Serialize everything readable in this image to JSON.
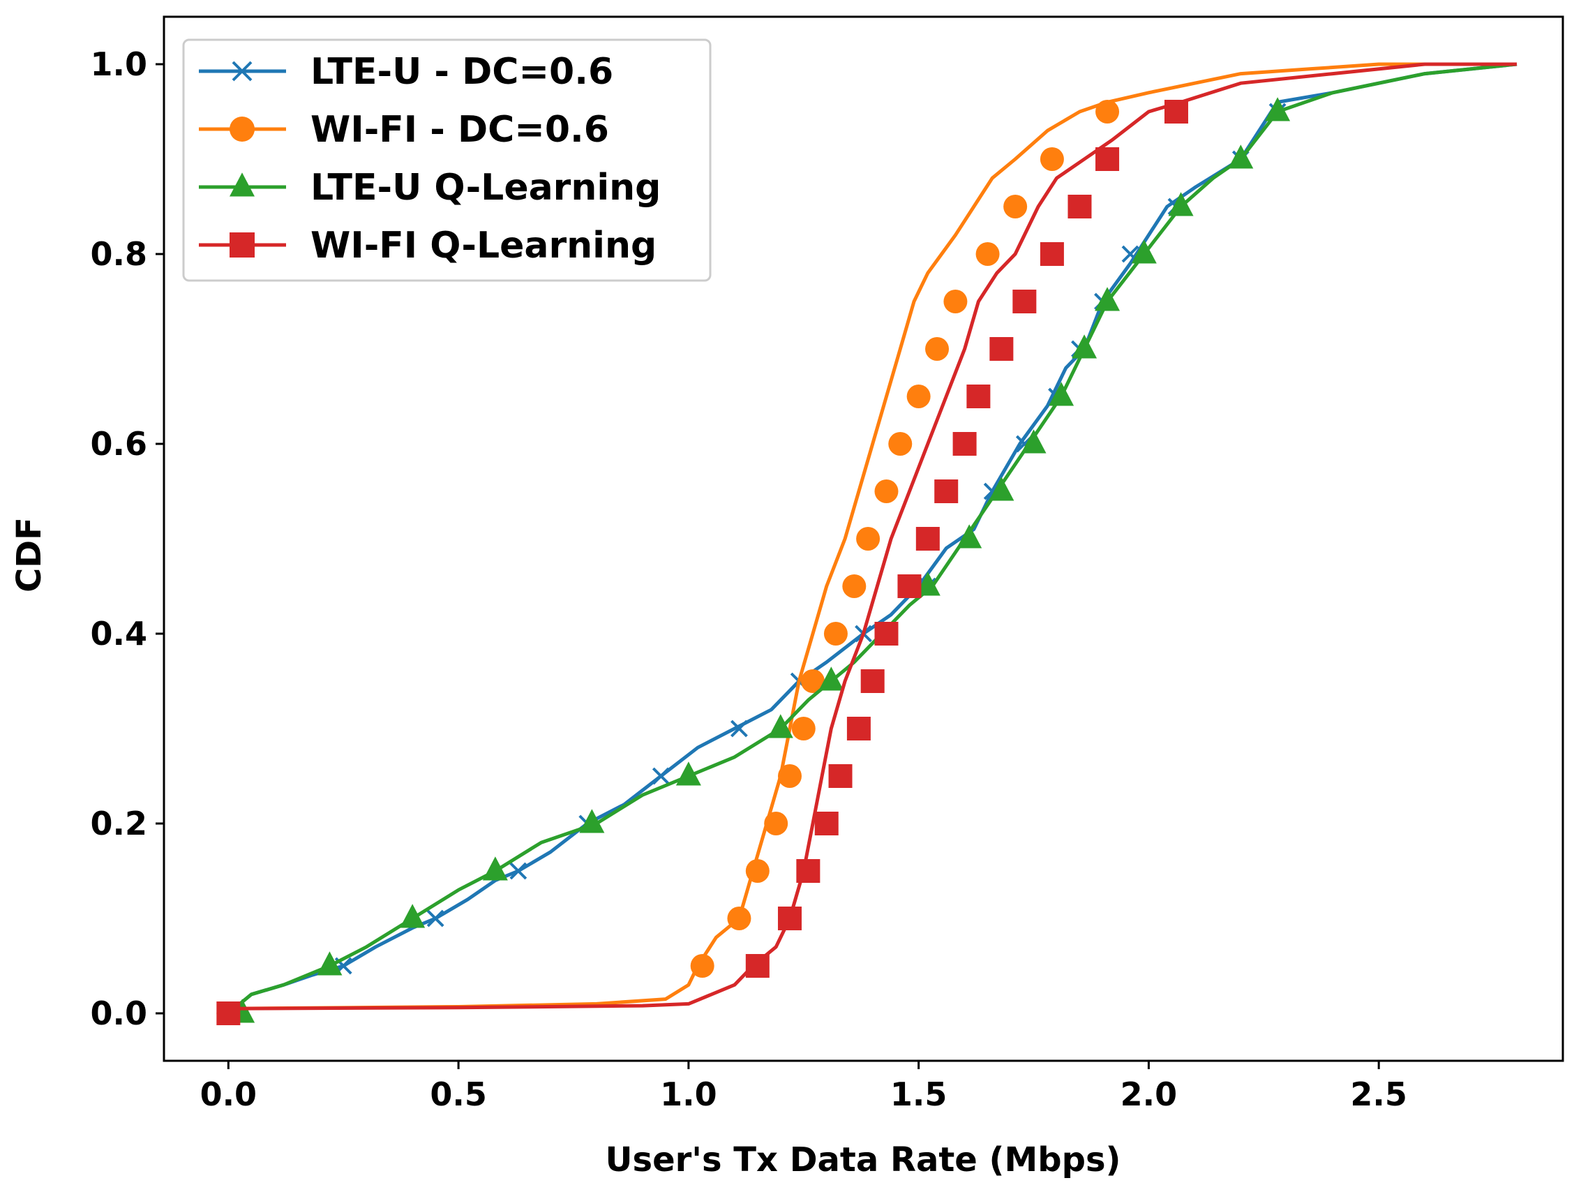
{
  "chart_data": {
    "type": "line",
    "title": "",
    "xlabel": "User's Tx Data Rate (Mbps)",
    "ylabel": "CDF",
    "xlim": [
      -0.14,
      2.9
    ],
    "ylim": [
      -0.05,
      1.05
    ],
    "xticks": [
      0.0,
      0.5,
      1.0,
      1.5,
      2.0,
      2.5
    ],
    "xtick_labels": [
      "0.0",
      "0.5",
      "1.0",
      "1.5",
      "2.0",
      "2.5"
    ],
    "yticks": [
      0.0,
      0.2,
      0.4,
      0.6,
      0.8,
      1.0
    ],
    "ytick_labels": [
      "0.0",
      "0.2",
      "0.4",
      "0.6",
      "0.8",
      "1.0"
    ],
    "grid": false,
    "legend_position": "upper-left",
    "series": [
      {
        "name": "LTE-U - DC=0.6",
        "color": "#1f77b4",
        "marker": "x",
        "x": [
          0.0,
          0.05,
          0.12,
          0.18,
          0.25,
          0.32,
          0.4,
          0.45,
          0.52,
          0.58,
          0.63,
          0.7,
          0.78,
          0.86,
          0.94,
          1.02,
          1.1,
          1.18,
          1.24,
          1.3,
          1.38,
          1.44,
          1.5,
          1.56,
          1.62,
          1.66,
          1.72,
          1.78,
          1.82,
          1.86,
          1.9,
          1.96,
          2.04,
          2.1,
          2.2,
          2.28,
          2.4,
          2.6,
          2.8
        ],
        "y": [
          0.0,
          0.02,
          0.03,
          0.04,
          0.05,
          0.07,
          0.09,
          0.1,
          0.12,
          0.14,
          0.15,
          0.17,
          0.2,
          0.22,
          0.25,
          0.28,
          0.3,
          0.32,
          0.35,
          0.37,
          0.4,
          0.42,
          0.45,
          0.49,
          0.51,
          0.55,
          0.6,
          0.64,
          0.68,
          0.7,
          0.75,
          0.79,
          0.85,
          0.87,
          0.9,
          0.96,
          0.97,
          0.99,
          1.0
        ],
        "marker_x": [
          0.0,
          0.25,
          0.45,
          0.63,
          0.78,
          0.94,
          1.11,
          1.24,
          1.38,
          1.52,
          1.66,
          1.73,
          1.8,
          1.85,
          1.9,
          1.96,
          2.06,
          2.2,
          2.28
        ],
        "marker_y": [
          0.0,
          0.05,
          0.1,
          0.15,
          0.2,
          0.25,
          0.3,
          0.35,
          0.4,
          0.45,
          0.55,
          0.6,
          0.65,
          0.7,
          0.75,
          0.8,
          0.85,
          0.9,
          0.95
        ]
      },
      {
        "name": "WI-FI - DC=0.6",
        "color": "#ff7f0e",
        "marker": "o",
        "x": [
          0.0,
          0.5,
          0.8,
          0.95,
          1.0,
          1.02,
          1.06,
          1.11,
          1.14,
          1.17,
          1.2,
          1.22,
          1.24,
          1.27,
          1.3,
          1.34,
          1.37,
          1.4,
          1.43,
          1.46,
          1.49,
          1.52,
          1.55,
          1.58,
          1.62,
          1.66,
          1.71,
          1.78,
          1.85,
          1.91,
          2.0,
          2.1,
          2.2,
          2.35,
          2.5,
          2.6
        ],
        "y": [
          0.005,
          0.007,
          0.01,
          0.015,
          0.03,
          0.05,
          0.08,
          0.1,
          0.15,
          0.2,
          0.25,
          0.3,
          0.35,
          0.4,
          0.45,
          0.5,
          0.55,
          0.6,
          0.65,
          0.7,
          0.75,
          0.78,
          0.8,
          0.82,
          0.85,
          0.88,
          0.9,
          0.93,
          0.95,
          0.96,
          0.97,
          0.98,
          0.99,
          0.995,
          1.0,
          1.0
        ],
        "marker_x": [
          0.0,
          1.03,
          1.11,
          1.15,
          1.19,
          1.22,
          1.25,
          1.27,
          1.32,
          1.36,
          1.39,
          1.43,
          1.46,
          1.5,
          1.54,
          1.58,
          1.65,
          1.71,
          1.79,
          1.91
        ],
        "marker_y": [
          0.0,
          0.05,
          0.1,
          0.15,
          0.2,
          0.25,
          0.3,
          0.35,
          0.4,
          0.45,
          0.5,
          0.55,
          0.6,
          0.65,
          0.7,
          0.75,
          0.8,
          0.85,
          0.9,
          0.95
        ]
      },
      {
        "name": "LTE-U Q-Learning",
        "color": "#2ca02c",
        "marker": "^",
        "x": [
          0.0,
          0.05,
          0.12,
          0.22,
          0.3,
          0.4,
          0.5,
          0.58,
          0.68,
          0.8,
          0.9,
          1.0,
          1.1,
          1.2,
          1.26,
          1.31,
          1.36,
          1.42,
          1.48,
          1.53,
          1.6,
          1.67,
          1.74,
          1.81,
          1.86,
          1.91,
          1.99,
          2.07,
          2.14,
          2.2,
          2.28,
          2.4,
          2.6,
          2.8
        ],
        "y": [
          0.0,
          0.02,
          0.03,
          0.05,
          0.07,
          0.1,
          0.13,
          0.15,
          0.18,
          0.2,
          0.23,
          0.25,
          0.27,
          0.3,
          0.33,
          0.35,
          0.37,
          0.4,
          0.43,
          0.45,
          0.5,
          0.55,
          0.6,
          0.65,
          0.7,
          0.75,
          0.8,
          0.85,
          0.88,
          0.9,
          0.95,
          0.97,
          0.99,
          1.0
        ],
        "marker_x": [
          0.03,
          0.22,
          0.4,
          0.58,
          0.79,
          1.0,
          1.2,
          1.31,
          1.52,
          1.61,
          1.68,
          1.75,
          1.81,
          1.86,
          1.91,
          1.99,
          2.07,
          2.2,
          2.28
        ],
        "marker_y": [
          0.0,
          0.05,
          0.1,
          0.15,
          0.2,
          0.25,
          0.3,
          0.35,
          0.45,
          0.5,
          0.55,
          0.6,
          0.65,
          0.7,
          0.75,
          0.8,
          0.85,
          0.9,
          0.95
        ]
      },
      {
        "name": "WI-FI Q-Learning",
        "color": "#d62728",
        "marker": "s",
        "x": [
          0.0,
          0.5,
          0.9,
          1.0,
          1.05,
          1.1,
          1.14,
          1.19,
          1.22,
          1.25,
          1.27,
          1.29,
          1.31,
          1.34,
          1.38,
          1.41,
          1.44,
          1.48,
          1.52,
          1.56,
          1.6,
          1.63,
          1.67,
          1.71,
          1.76,
          1.8,
          1.86,
          1.92,
          2.0,
          2.07,
          2.2,
          2.4,
          2.6,
          2.8
        ],
        "y": [
          0.005,
          0.006,
          0.008,
          0.01,
          0.02,
          0.03,
          0.05,
          0.07,
          0.1,
          0.15,
          0.2,
          0.25,
          0.3,
          0.35,
          0.4,
          0.45,
          0.5,
          0.55,
          0.6,
          0.65,
          0.7,
          0.75,
          0.78,
          0.8,
          0.85,
          0.88,
          0.9,
          0.92,
          0.95,
          0.96,
          0.98,
          0.99,
          1.0,
          1.0
        ],
        "marker_x": [
          0.0,
          1.15,
          1.22,
          1.26,
          1.3,
          1.33,
          1.37,
          1.4,
          1.43,
          1.48,
          1.52,
          1.56,
          1.6,
          1.63,
          1.68,
          1.73,
          1.79,
          1.85,
          1.91,
          2.06
        ],
        "marker_y": [
          0.0,
          0.05,
          0.1,
          0.15,
          0.2,
          0.25,
          0.3,
          0.35,
          0.4,
          0.45,
          0.5,
          0.55,
          0.6,
          0.65,
          0.7,
          0.75,
          0.8,
          0.85,
          0.9,
          0.95
        ]
      }
    ]
  }
}
